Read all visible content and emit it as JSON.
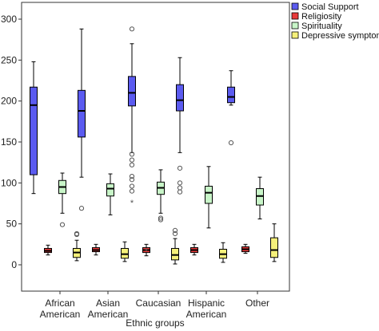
{
  "chart_data": {
    "type": "boxplot",
    "xlabel": "Ethnic groups",
    "ylabel": "",
    "ylim": [
      0,
      300
    ],
    "yticks": [
      0,
      50,
      100,
      150,
      200,
      250,
      300
    ],
    "grid": false,
    "legend_position": "top-right",
    "categories": [
      {
        "lines": [
          "African",
          "American"
        ]
      },
      {
        "lines": [
          "Asian",
          "American"
        ]
      },
      {
        "lines": [
          "Caucasian"
        ]
      },
      {
        "lines": [
          "Hispanic",
          "American"
        ]
      },
      {
        "lines": [
          "Other"
        ]
      }
    ],
    "series": [
      {
        "name": "Social Support",
        "color": "#5b5bf0",
        "boxes": [
          {
            "min": 87,
            "q1": 110,
            "median": 195,
            "q3": 217,
            "max": 248,
            "outliers": [],
            "extremes": []
          },
          {
            "min": 107,
            "q1": 156,
            "median": 188,
            "q3": 213,
            "max": 288,
            "outliers": [
              69
            ],
            "extremes": []
          },
          {
            "min": 137,
            "q1": 194,
            "median": 210,
            "q3": 230,
            "max": 270,
            "outliers": [
              288,
              135,
              128,
              122,
              108,
              104,
              96,
              90
            ],
            "extremes": [
              76
            ]
          },
          {
            "min": 137,
            "q1": 188,
            "median": 201,
            "q3": 220,
            "max": 253,
            "outliers": [
              118,
              100,
              94,
              89
            ],
            "extremes": []
          },
          {
            "min": 195,
            "q1": 198,
            "median": 205,
            "q3": 217,
            "max": 237,
            "outliers": [
              149
            ],
            "extremes": []
          }
        ]
      },
      {
        "name": "Religiosity",
        "color": "#e83a3a",
        "boxes": [
          {
            "min": 12,
            "q1": 15,
            "median": 17,
            "q3": 20,
            "max": 24,
            "outliers": [],
            "extremes": []
          },
          {
            "min": 12,
            "q1": 16,
            "median": 18,
            "q3": 21,
            "max": 25,
            "outliers": [],
            "extremes": []
          },
          {
            "min": 11,
            "q1": 15,
            "median": 18,
            "q3": 21,
            "max": 25,
            "outliers": [],
            "extremes": [
              17
            ]
          },
          {
            "min": 12,
            "q1": 15,
            "median": 18,
            "q3": 21,
            "max": 25,
            "outliers": [],
            "extremes": []
          },
          {
            "min": 14,
            "q1": 16,
            "median": 19,
            "q3": 22,
            "max": 25,
            "outliers": [],
            "extremes": []
          }
        ]
      },
      {
        "name": "Spirituality",
        "color": "#c8f5c8",
        "boxes": [
          {
            "min": 63,
            "q1": 87,
            "median": 95,
            "q3": 103,
            "max": 112,
            "outliers": [
              49
            ],
            "extremes": []
          },
          {
            "min": 61,
            "q1": 84,
            "median": 93,
            "q3": 99,
            "max": 111,
            "outliers": [],
            "extremes": []
          },
          {
            "min": 63,
            "q1": 86,
            "median": 94,
            "q3": 101,
            "max": 116,
            "outliers": [
              57,
              55
            ],
            "extremes": []
          },
          {
            "min": 45,
            "q1": 75,
            "median": 88,
            "q3": 96,
            "max": 120,
            "outliers": [],
            "extremes": []
          },
          {
            "min": 56,
            "q1": 73,
            "median": 84,
            "q3": 93,
            "max": 107,
            "outliers": [],
            "extremes": []
          }
        ]
      },
      {
        "name": "Depressive symptoms",
        "color": "#f5f07a",
        "boxes": [
          {
            "min": 5,
            "q1": 9,
            "median": 15,
            "q3": 20,
            "max": 30,
            "outliers": [
              38,
              37
            ],
            "extremes": []
          },
          {
            "min": 4,
            "q1": 8,
            "median": 13,
            "q3": 20,
            "max": 28,
            "outliers": [],
            "extremes": []
          },
          {
            "min": 1,
            "q1": 6,
            "median": 12,
            "q3": 20,
            "max": 32,
            "outliers": [
              42,
              38
            ],
            "extremes": []
          },
          {
            "min": 3,
            "q1": 8,
            "median": 13,
            "q3": 19,
            "max": 27,
            "outliers": [],
            "extremes": []
          },
          {
            "min": 4,
            "q1": 9,
            "median": 18,
            "q3": 33,
            "max": 50,
            "outliers": [],
            "extremes": []
          }
        ]
      }
    ]
  }
}
